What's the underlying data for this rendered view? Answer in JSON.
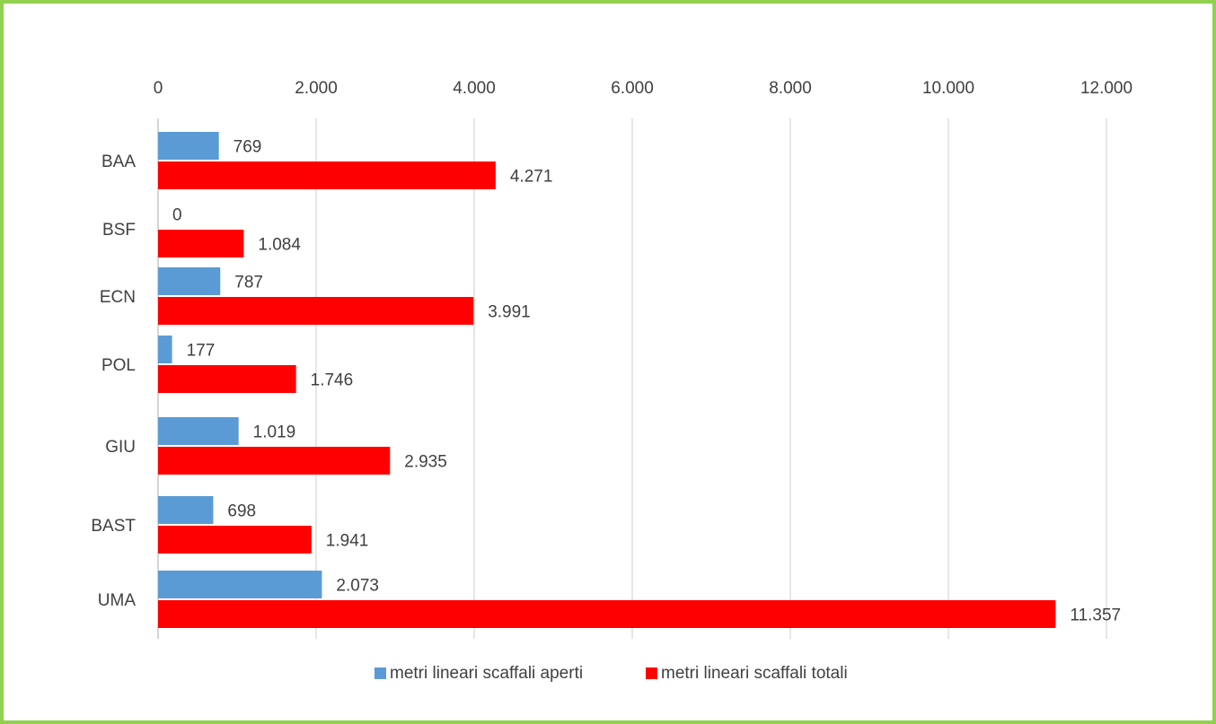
{
  "chart_data": {
    "type": "bar",
    "orientation": "horizontal",
    "categories": [
      "BAA",
      "BSF",
      "ECN",
      "POL",
      "GIU",
      "BAST",
      "UMA"
    ],
    "series": [
      {
        "name": "metri lineari scaffali aperti",
        "color": "#5b9bd5",
        "values": [
          769,
          0,
          787,
          177,
          1019,
          698,
          2073
        ]
      },
      {
        "name": "metri lineari scaffali totali",
        "color": "#ff0000",
        "values": [
          4271,
          1084,
          3991,
          1746,
          2935,
          1941,
          11357
        ]
      }
    ],
    "data_labels": [
      [
        "769",
        "0",
        "787",
        "177",
        "1.019",
        "698",
        "2.073"
      ],
      [
        "4.271",
        "1.084",
        "3.991",
        "1.746",
        "2.935",
        "1.941",
        "11.357"
      ]
    ],
    "xlim": [
      0,
      12000
    ],
    "x_ticks": [
      0,
      2000,
      4000,
      6000,
      8000,
      10000,
      12000
    ],
    "x_tick_labels": [
      "0",
      "2.000",
      "4.000",
      "6.000",
      "8.000",
      "10.000",
      "12.000"
    ],
    "x_axis_position": "top",
    "grid": true,
    "legend_position": "bottom",
    "frame_color": "#92d050"
  }
}
